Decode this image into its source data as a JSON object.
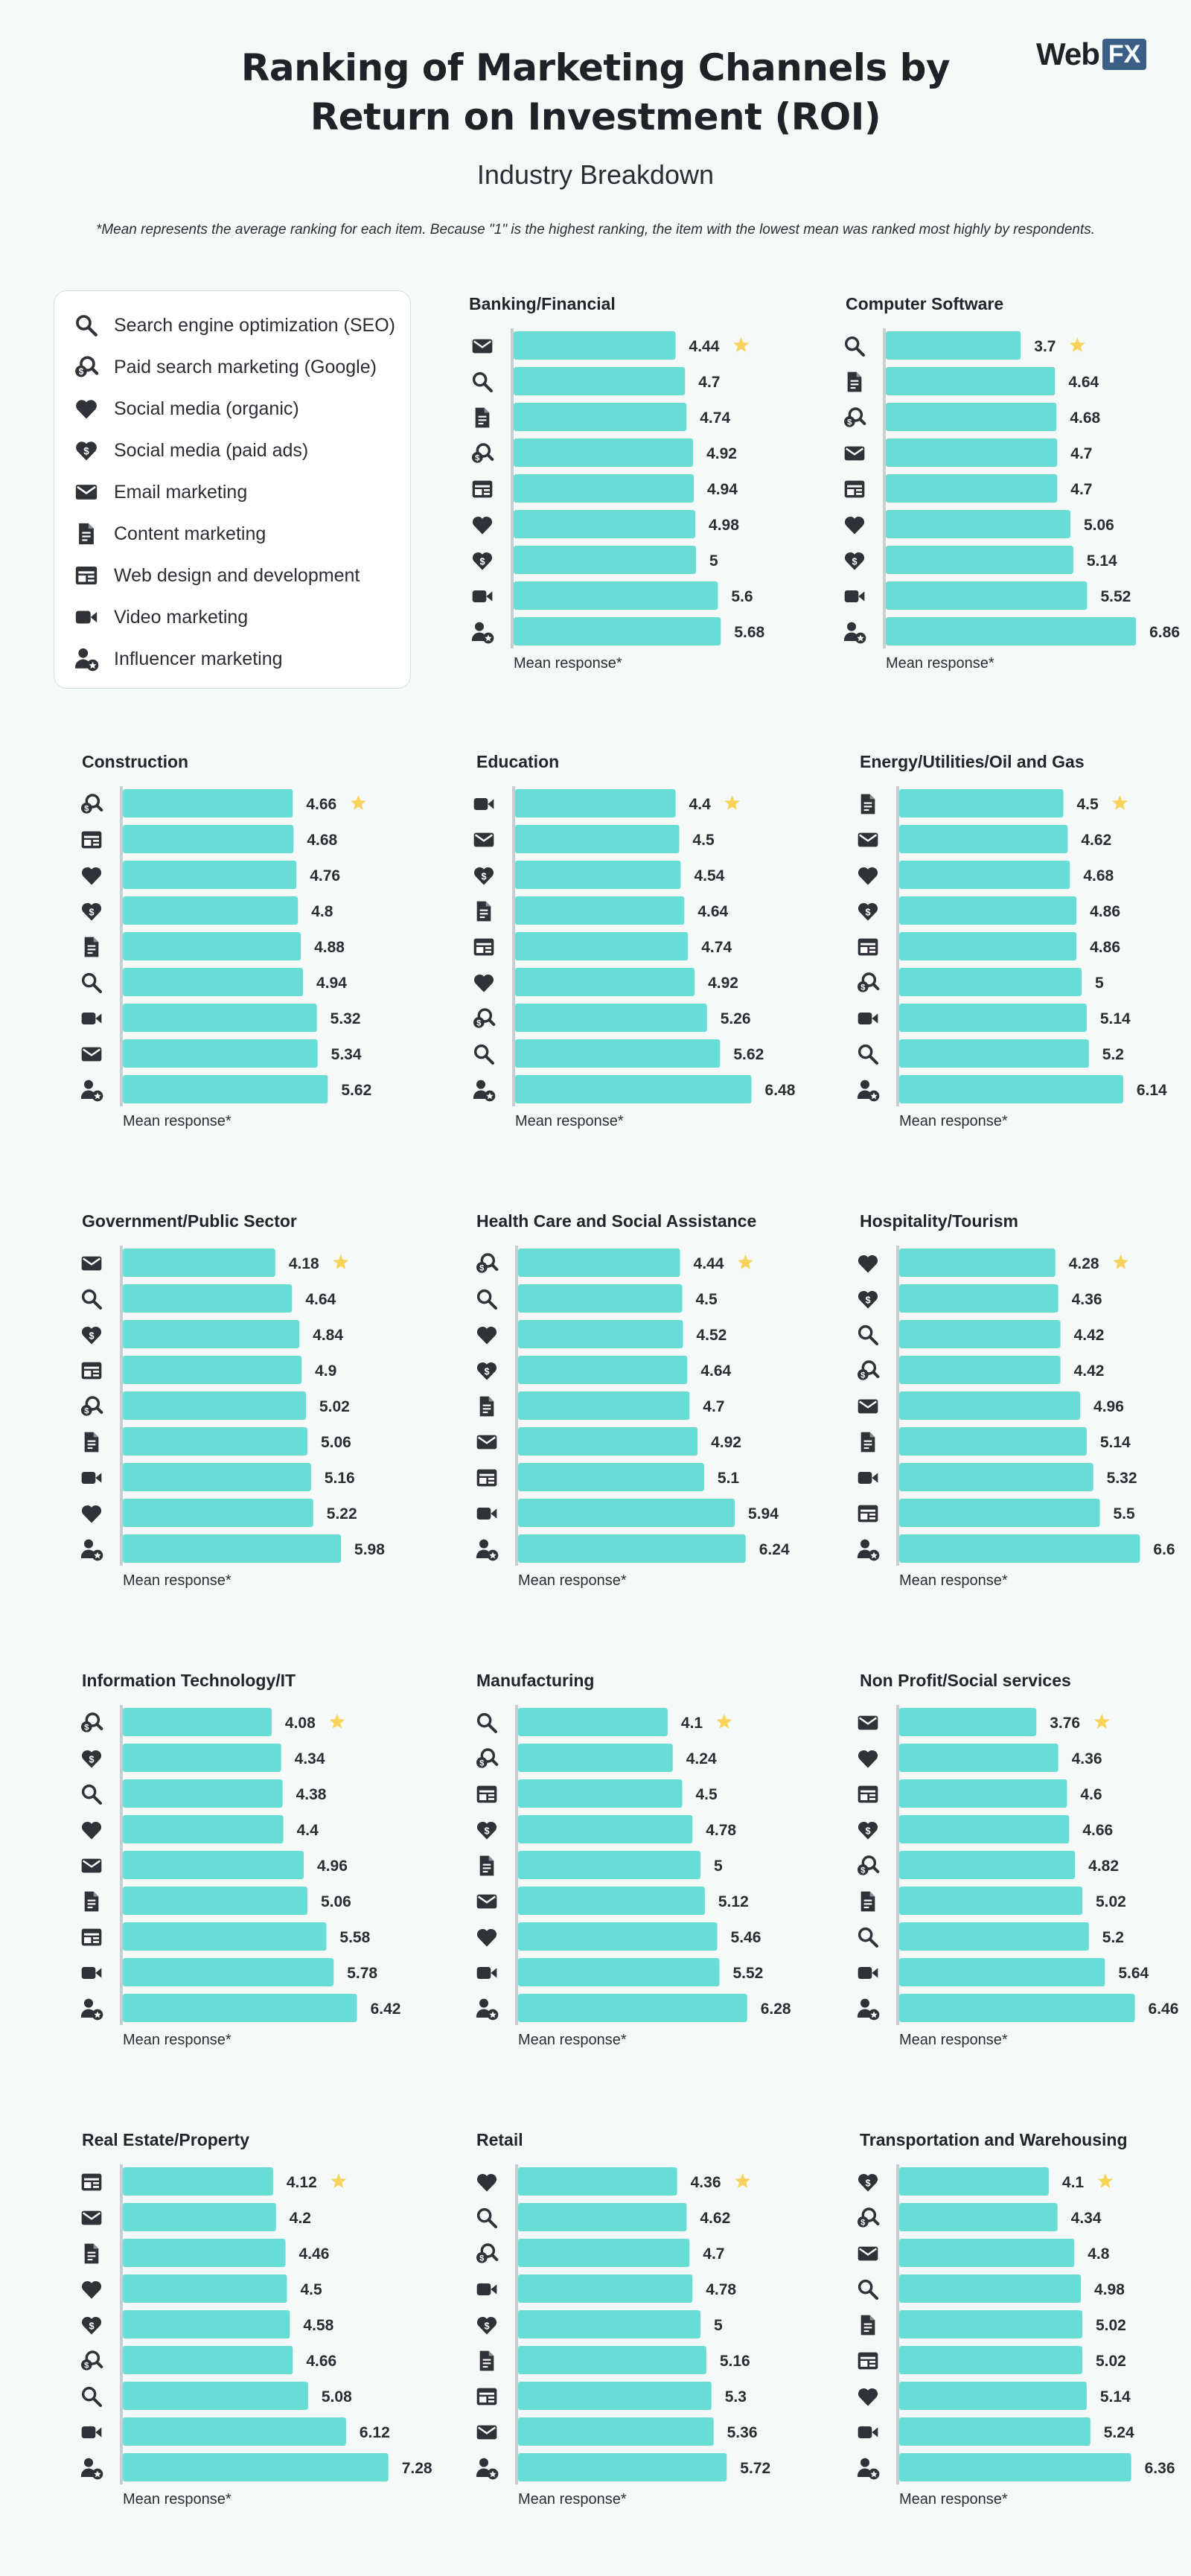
{
  "header": {
    "title_line1": "Ranking of Marketing Channels by",
    "title_line2": "Return on Investment (ROI)",
    "subtitle": "Industry Breakdown",
    "note": "*Mean represents the average ranking for each item. Because \"1\" is the highest ranking, the item with the lowest mean was ranked most highly by respondents.",
    "logo_word": "Web",
    "logo_box": "FX"
  },
  "colors": {
    "bar": "#68ddd5",
    "axis": "#c7cdd0",
    "icon": "#2f3338",
    "star": "#f7d35c",
    "background": "#f5faf9"
  },
  "legend": [
    {
      "icon": "magnifier-icon",
      "label": "Search engine optimization (SEO)"
    },
    {
      "icon": "paid-search-icon",
      "label": "Paid search marketing (Google)"
    },
    {
      "icon": "heart-icon",
      "label": "Social media (organic)"
    },
    {
      "icon": "heart-dollar-icon",
      "label": "Social media (paid ads)"
    },
    {
      "icon": "envelope-icon",
      "label": "Email marketing"
    },
    {
      "icon": "document-icon",
      "label": "Content marketing"
    },
    {
      "icon": "web-layout-icon",
      "label": "Web design and development"
    },
    {
      "icon": "video-camera-icon",
      "label": "Video marketing"
    },
    {
      "icon": "influencer-icon",
      "label": "Influencer marketing"
    }
  ],
  "chart_data": [
    {
      "type": "bar",
      "orientation": "horizontal",
      "title": "Banking/Financial",
      "xlabel": "Mean response*",
      "categories": [
        "Email marketing",
        "Search engine optimization (SEO)",
        "Content marketing",
        "Paid search marketing (Google)",
        "Web design and development",
        "Social media (organic)",
        "Social media (paid ads)",
        "Video marketing",
        "Influencer marketing"
      ],
      "labels": [
        "4.44",
        "4.7",
        "4.74",
        "4.92",
        "4.94",
        "4.98",
        "5",
        "5.6",
        "5.68"
      ],
      "values": [
        4.44,
        4.7,
        4.74,
        4.92,
        4.94,
        4.98,
        5,
        5.6,
        5.68
      ],
      "top_ranked_marker": "star"
    },
    {
      "type": "bar",
      "orientation": "horizontal",
      "title": "Computer Software",
      "xlabel": "Mean response*",
      "categories": [
        "Search engine optimization (SEO)",
        "Content marketing",
        "Paid search marketing (Google)",
        "Email marketing",
        "Web design and development",
        "Social media (organic)",
        "Social media (paid ads)",
        "Video marketing",
        "Influencer marketing"
      ],
      "labels": [
        "3.7",
        "4.64",
        "4.68",
        "4.7",
        "4.7",
        "5.06",
        "5.14",
        "5.52",
        "6.86"
      ],
      "values": [
        3.7,
        4.64,
        4.68,
        4.7,
        4.7,
        5.06,
        5.14,
        5.52,
        6.86
      ],
      "top_ranked_marker": "star"
    },
    {
      "type": "bar",
      "orientation": "horizontal",
      "title": "Construction",
      "xlabel": "Mean response*",
      "categories": [
        "Paid search marketing (Google)",
        "Web design and development",
        "Social media (organic)",
        "Social media (paid ads)",
        "Content marketing",
        "Search engine optimization (SEO)",
        "Video marketing",
        "Email marketing",
        "Influencer marketing"
      ],
      "labels": [
        "4.66",
        "4.68",
        "4.76",
        "4.8",
        "4.88",
        "4.94",
        "5.32",
        "5.34",
        "5.62"
      ],
      "values": [
        4.66,
        4.68,
        4.76,
        4.8,
        4.88,
        4.94,
        5.32,
        5.34,
        5.62
      ],
      "top_ranked_marker": "star"
    },
    {
      "type": "bar",
      "orientation": "horizontal",
      "title": "Education",
      "xlabel": "Mean response*",
      "categories": [
        "Video marketing",
        "Email marketing",
        "Social media (paid ads)",
        "Content marketing",
        "Web design and development",
        "Social media (organic)",
        "Paid search marketing (Google)",
        "Search engine optimization (SEO)",
        "Influencer marketing"
      ],
      "labels": [
        "4.4",
        "4.5",
        "4.54",
        "4.64",
        "4.74",
        "4.92",
        "5.26",
        "5.62",
        "6.48"
      ],
      "values": [
        4.4,
        4.5,
        4.54,
        4.64,
        4.74,
        4.92,
        5.26,
        5.62,
        6.48
      ],
      "top_ranked_marker": "star"
    },
    {
      "type": "bar",
      "orientation": "horizontal",
      "title": "Energy/Utilities/Oil and Gas",
      "xlabel": "Mean response*",
      "categories": [
        "Content marketing",
        "Email marketing",
        "Social media (organic)",
        "Social media (paid ads)",
        "Web design and development",
        "Paid search marketing (Google)",
        "Video marketing",
        "Search engine optimization (SEO)",
        "Influencer marketing"
      ],
      "labels": [
        "4.5",
        "4.62",
        "4.68",
        "4.86",
        "4.86",
        "5",
        "5.14",
        "5.2",
        "6.14"
      ],
      "values": [
        4.5,
        4.62,
        4.68,
        4.86,
        4.86,
        5,
        5.14,
        5.2,
        6.14
      ],
      "top_ranked_marker": "star"
    },
    {
      "type": "bar",
      "orientation": "horizontal",
      "title": "Government/Public Sector",
      "xlabel": "Mean response*",
      "categories": [
        "Email marketing",
        "Search engine optimization (SEO)",
        "Social media (paid ads)",
        "Web design and development",
        "Paid search marketing (Google)",
        "Content marketing",
        "Video marketing",
        "Social media (organic)",
        "Influencer marketing"
      ],
      "labels": [
        "4.18",
        "4.64",
        "4.84",
        "4.9",
        "5.02",
        "5.06",
        "5.16",
        "5.22",
        "5.98"
      ],
      "values": [
        4.18,
        4.64,
        4.84,
        4.9,
        5.02,
        5.06,
        5.16,
        5.22,
        5.98
      ],
      "top_ranked_marker": "star"
    },
    {
      "type": "bar",
      "orientation": "horizontal",
      "title": "Health Care and Social Assistance",
      "xlabel": "Mean response*",
      "categories": [
        "Paid search marketing (Google)",
        "Search engine optimization (SEO)",
        "Social media (organic)",
        "Social media (paid ads)",
        "Content marketing",
        "Email marketing",
        "Web design and development",
        "Video marketing",
        "Influencer marketing"
      ],
      "labels": [
        "4.44",
        "4.5",
        "4.52",
        "4.64",
        "4.7",
        "4.92",
        "5.1",
        "5.94",
        "6.24"
      ],
      "values": [
        4.44,
        4.5,
        4.52,
        4.64,
        4.7,
        4.92,
        5.1,
        5.94,
        6.24
      ],
      "top_ranked_marker": "star"
    },
    {
      "type": "bar",
      "orientation": "horizontal",
      "title": "Hospitality/Tourism",
      "xlabel": "Mean response*",
      "categories": [
        "Social media (organic)",
        "Social media (paid ads)",
        "Search engine optimization (SEO)",
        "Paid search marketing (Google)",
        "Email marketing",
        "Content marketing",
        "Video marketing",
        "Web design and development",
        "Influencer marketing"
      ],
      "labels": [
        "4.28",
        "4.36",
        "4.42",
        "4.42",
        "4.96",
        "5.14",
        "5.32",
        "5.5",
        "6.6"
      ],
      "values": [
        4.28,
        4.36,
        4.42,
        4.42,
        4.96,
        5.14,
        5.32,
        5.5,
        6.6
      ],
      "top_ranked_marker": "star"
    },
    {
      "type": "bar",
      "orientation": "horizontal",
      "title": "Information Technology/IT",
      "xlabel": "Mean response*",
      "categories": [
        "Paid search marketing (Google)",
        "Social media (paid ads)",
        "Search engine optimization (SEO)",
        "Social media (organic)",
        "Email marketing",
        "Content marketing",
        "Web design and development",
        "Video marketing",
        "Influencer marketing"
      ],
      "labels": [
        "4.08",
        "4.34",
        "4.38",
        "4.4",
        "4.96",
        "5.06",
        "5.58",
        "5.78",
        "6.42"
      ],
      "values": [
        4.08,
        4.34,
        4.38,
        4.4,
        4.96,
        5.06,
        5.58,
        5.78,
        6.42
      ],
      "top_ranked_marker": "star"
    },
    {
      "type": "bar",
      "orientation": "horizontal",
      "title": "Manufacturing",
      "xlabel": "Mean response*",
      "categories": [
        "Search engine optimization (SEO)",
        "Paid search marketing (Google)",
        "Web design and development",
        "Social media (paid ads)",
        "Content marketing",
        "Email marketing",
        "Social media (organic)",
        "Video marketing",
        "Influencer marketing"
      ],
      "labels": [
        "4.1",
        "4.24",
        "4.5",
        "4.78",
        "5",
        "5.12",
        "5.46",
        "5.52",
        "6.28"
      ],
      "values": [
        4.1,
        4.24,
        4.5,
        4.78,
        5,
        5.12,
        5.46,
        5.52,
        6.28
      ],
      "top_ranked_marker": "star"
    },
    {
      "type": "bar",
      "orientation": "horizontal",
      "title": "Non Profit/Social services",
      "xlabel": "Mean response*",
      "categories": [
        "Email marketing",
        "Social media (organic)",
        "Web design and development",
        "Social media (paid ads)",
        "Paid search marketing (Google)",
        "Content marketing",
        "Search engine optimization (SEO)",
        "Video marketing",
        "Influencer marketing"
      ],
      "labels": [
        "3.76",
        "4.36",
        "4.6",
        "4.66",
        "4.82",
        "5.02",
        "5.2",
        "5.64",
        "6.46"
      ],
      "values": [
        3.76,
        4.36,
        4.6,
        4.66,
        4.82,
        5.02,
        5.2,
        5.64,
        6.46
      ],
      "top_ranked_marker": "star"
    },
    {
      "type": "bar",
      "orientation": "horizontal",
      "title": "Real Estate/Property",
      "xlabel": "Mean response*",
      "categories": [
        "Web design and development",
        "Email marketing",
        "Content marketing",
        "Social media (organic)",
        "Social media (paid ads)",
        "Paid search marketing (Google)",
        "Search engine optimization (SEO)",
        "Video marketing",
        "Influencer marketing"
      ],
      "labels": [
        "4.12",
        "4.2",
        "4.46",
        "4.5",
        "4.58",
        "4.66",
        "5.08",
        "6.12",
        "7.28"
      ],
      "values": [
        4.12,
        4.2,
        4.46,
        4.5,
        4.58,
        4.66,
        5.08,
        6.12,
        7.28
      ],
      "top_ranked_marker": "star"
    },
    {
      "type": "bar",
      "orientation": "horizontal",
      "title": "Retail",
      "xlabel": "Mean response*",
      "categories": [
        "Social media (organic)",
        "Search engine optimization (SEO)",
        "Paid search marketing (Google)",
        "Video marketing",
        "Social media (paid ads)",
        "Content marketing",
        "Web design and development",
        "Email marketing",
        "Influencer marketing"
      ],
      "labels": [
        "4.36",
        "4.62",
        "4.7",
        "4.78",
        "5",
        "5.16",
        "5.3",
        "5.36",
        "5.72"
      ],
      "values": [
        4.36,
        4.62,
        4.7,
        4.78,
        5,
        5.16,
        5.3,
        5.36,
        5.72
      ],
      "top_ranked_marker": "star"
    },
    {
      "type": "bar",
      "orientation": "horizontal",
      "title": "Transportation and Warehousing",
      "xlabel": "Mean response*",
      "categories": [
        "Social media (paid ads)",
        "Paid search marketing (Google)",
        "Email marketing",
        "Search engine optimization (SEO)",
        "Content marketing",
        "Web design and development",
        "Social media (organic)",
        "Video marketing",
        "Influencer marketing"
      ],
      "labels": [
        "4.1",
        "4.34",
        "4.8",
        "4.98",
        "5.02",
        "5.02",
        "5.14",
        "5.24",
        "6.36"
      ],
      "values": [
        4.1,
        4.34,
        4.8,
        4.98,
        5.02,
        5.02,
        5.14,
        5.24,
        6.36
      ],
      "top_ranked_marker": "star"
    }
  ]
}
